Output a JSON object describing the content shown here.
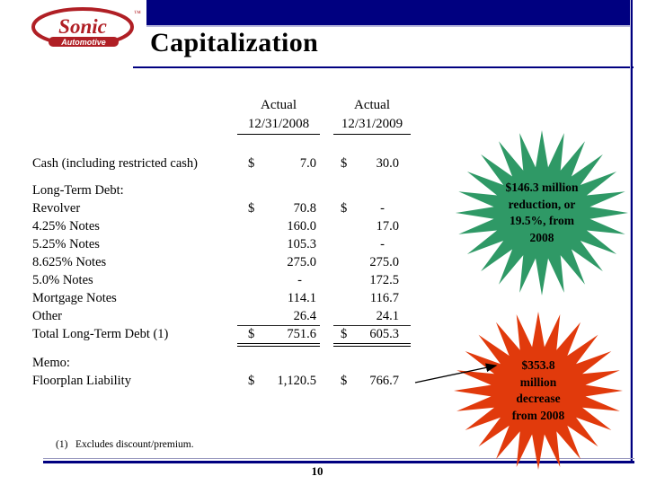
{
  "slide": {
    "title": "Capitalization",
    "page_number": "10",
    "footnote": {
      "marker": "(1)",
      "text": "Excludes discount/premium."
    }
  },
  "logo": {
    "brand": "Sonic",
    "sub": "Automotive",
    "trademark": "™",
    "color": "#b01f25"
  },
  "table": {
    "columns": [
      {
        "line1": "Actual",
        "line2": "12/31/2008"
      },
      {
        "line1": "Actual",
        "line2": "12/31/2009"
      }
    ],
    "sections": [
      {
        "name": "cash",
        "rows": [
          {
            "label": "Cash (including restricted cash)",
            "d1": "$",
            "v1": "7.0",
            "d2": "$",
            "v2": "30.0"
          }
        ]
      },
      {
        "name": "long-term-debt",
        "rows": [
          {
            "label": "Long-Term Debt:",
            "d1": "",
            "v1": "",
            "d2": "",
            "v2": ""
          },
          {
            "label": "Revolver",
            "d1": "$",
            "v1": "70.8",
            "d2": "$",
            "v2": "-"
          },
          {
            "label": "4.25% Notes",
            "d1": "",
            "v1": "160.0",
            "d2": "",
            "v2": "17.0"
          },
          {
            "label": "5.25% Notes",
            "d1": "",
            "v1": "105.3",
            "d2": "",
            "v2": "-"
          },
          {
            "label": "8.625% Notes",
            "d1": "",
            "v1": "275.0",
            "d2": "",
            "v2": "275.0"
          },
          {
            "label": "5.0% Notes",
            "d1": "",
            "v1": "-",
            "d2": "",
            "v2": "172.5"
          },
          {
            "label": "Mortgage Notes",
            "d1": "",
            "v1": "114.1",
            "d2": "",
            "v2": "116.7"
          },
          {
            "label": "Other",
            "d1": "",
            "v1": "26.4",
            "d2": "",
            "v2": "24.1",
            "rule": "single"
          },
          {
            "label": "Total Long-Term Debt (1)",
            "d1": "$",
            "v1": "751.6",
            "d2": "$",
            "v2": "605.3",
            "rule": "double"
          }
        ]
      },
      {
        "name": "memo",
        "rows": [
          {
            "label": "Memo:",
            "d1": "",
            "v1": "",
            "d2": "",
            "v2": ""
          },
          {
            "label": "Floorplan Liability",
            "d1": "$",
            "v1": "1,120.5",
            "d2": "$",
            "v2": "766.7"
          }
        ]
      }
    ]
  },
  "callouts": {
    "green": {
      "color": "#2f9966",
      "lines": [
        "$146.3 million",
        "reduction, or",
        "19.5%, from",
        "2008"
      ]
    },
    "red": {
      "color": "#e13a0c",
      "lines": [
        "$353.8",
        "million",
        "decrease",
        "from 2008"
      ]
    }
  },
  "colors": {
    "accent_navy": "#000080",
    "brand_red": "#b01f25"
  }
}
